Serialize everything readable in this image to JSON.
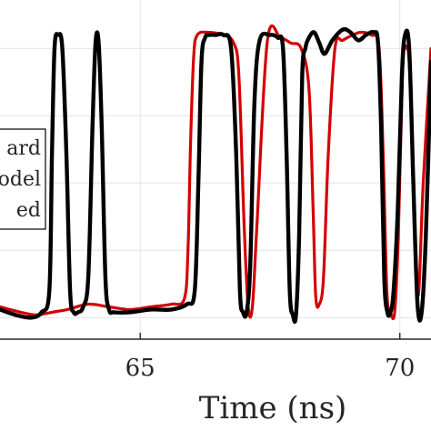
{
  "chart_data": {
    "type": "line",
    "xlabel": "Time (ns)",
    "ylabel": "",
    "title": "",
    "x_ticks": [
      {
        "value": 65,
        "label": "65"
      },
      {
        "value": 70,
        "label": "70"
      }
    ],
    "xlim": [
      62.3,
      70.6
    ],
    "ylim": [
      -0.08,
      1.18
    ],
    "grid": true,
    "legend": {
      "placement": "left",
      "entries": [
        "ard",
        "odel",
        "ed"
      ]
    },
    "series": [
      {
        "color": "#d40000",
        "x": [
          62.3,
          62.7,
          63.0,
          63.3,
          63.6,
          64.0,
          64.4,
          64.8,
          65.2,
          65.6,
          65.85,
          65.92,
          65.97,
          66.03,
          66.1,
          66.3,
          66.6,
          66.8,
          66.9,
          67.0,
          67.08,
          67.16,
          67.25,
          67.45,
          67.7,
          67.9,
          68.1,
          68.25,
          68.33,
          68.38,
          68.45,
          68.53,
          68.62,
          68.75,
          68.9,
          69.1,
          69.25,
          69.45,
          69.6,
          69.68,
          69.75,
          69.82,
          69.9,
          69.97,
          70.05,
          70.1,
          70.18,
          70.26,
          70.35,
          70.45,
          70.6
        ],
        "y": [
          0.04,
          0.02,
          0.01,
          0.02,
          0.03,
          0.05,
          0.04,
          0.03,
          0.04,
          0.05,
          0.07,
          0.25,
          0.65,
          0.97,
          1.05,
          1.06,
          1.05,
          1.02,
          0.9,
          0.35,
          0.04,
          0.04,
          0.35,
          1.03,
          1.04,
          1.02,
          1.0,
          0.85,
          0.4,
          0.08,
          0.05,
          0.15,
          0.6,
          1.0,
          1.03,
          1.05,
          1.06,
          1.05,
          1.0,
          0.6,
          0.1,
          0.02,
          0.02,
          0.3,
          0.9,
          1.0,
          0.95,
          0.5,
          0.08,
          0.5,
          1.0
        ]
      },
      {
        "color": "#000000",
        "x": [
          62.3,
          62.6,
          62.9,
          63.1,
          63.25,
          63.3,
          63.35,
          63.42,
          63.5,
          63.58,
          63.65,
          63.72,
          63.8,
          63.9,
          64.0,
          64.08,
          64.14,
          64.2,
          64.26,
          64.33,
          64.4,
          64.5,
          64.8,
          65.2,
          65.6,
          65.9,
          66.05,
          66.12,
          66.18,
          66.25,
          66.33,
          66.45,
          66.6,
          66.75,
          66.85,
          66.92,
          66.98,
          67.05,
          67.12,
          67.2,
          67.3,
          67.5,
          67.65,
          67.75,
          67.82,
          67.88,
          67.94,
          68.0,
          68.06,
          68.12,
          68.18,
          68.25,
          68.35,
          68.45,
          68.55,
          68.7,
          68.9,
          69.05,
          69.2,
          69.35,
          69.5,
          69.58,
          69.64,
          69.7,
          69.76,
          69.82,
          69.88,
          69.96,
          70.04,
          70.1,
          70.18,
          70.26,
          70.34,
          70.42,
          70.5,
          70.6
        ],
        "y": [
          0.03,
          0.01,
          0.0,
          0.02,
          0.1,
          0.6,
          1.0,
          1.05,
          1.0,
          0.6,
          0.1,
          0.02,
          0.02,
          0.04,
          0.15,
          0.7,
          1.02,
          1.02,
          0.7,
          0.15,
          0.03,
          0.02,
          0.02,
          0.03,
          0.03,
          0.05,
          0.1,
          0.5,
          0.95,
          1.04,
          1.05,
          1.05,
          1.05,
          1.0,
          0.6,
          0.1,
          0.02,
          0.02,
          0.2,
          0.8,
          1.03,
          1.05,
          1.04,
          1.0,
          0.6,
          0.1,
          0.01,
          0.01,
          0.3,
          0.9,
          1.0,
          1.04,
          1.06,
          1.02,
          0.98,
          1.03,
          1.07,
          1.06,
          1.03,
          1.05,
          1.06,
          1.02,
          0.7,
          0.15,
          0.02,
          0.02,
          0.1,
          0.4,
          0.9,
          1.05,
          1.0,
          0.5,
          0.05,
          0.02,
          0.3,
          0.95
        ]
      }
    ]
  }
}
